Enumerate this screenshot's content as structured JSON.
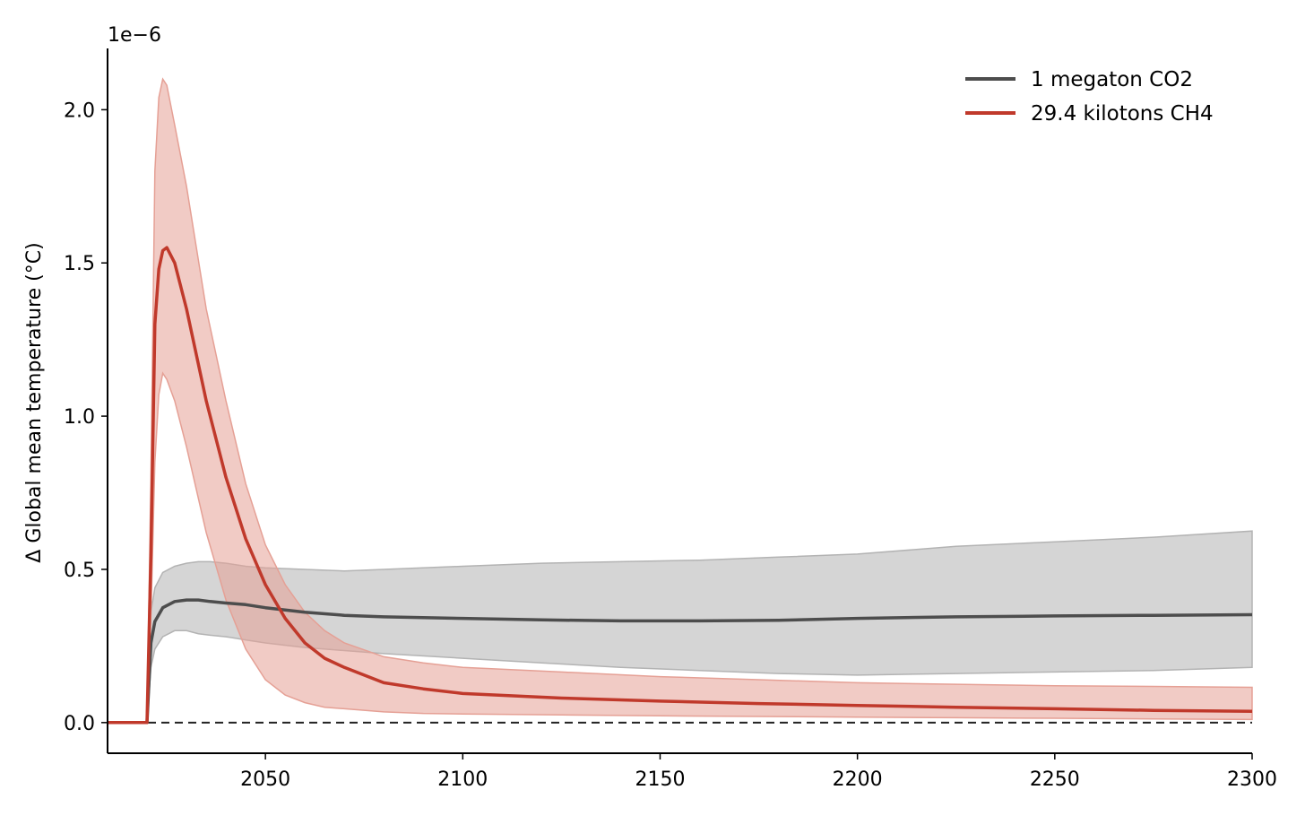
{
  "chart_data": {
    "type": "line",
    "title": "",
    "xlabel": "",
    "ylabel": "Δ Global mean temperature (°C)",
    "y_offset_label": "1e−6",
    "y_scale_multiplier": 1e-06,
    "xlim": [
      2010,
      2300
    ],
    "ylim": [
      -0.1,
      2.2
    ],
    "x_ticks": [
      2050,
      2100,
      2150,
      2200,
      2250,
      2300
    ],
    "y_ticks": [
      0.0,
      0.5,
      1.0,
      1.5,
      2.0
    ],
    "x_tick_labels": [
      "2050",
      "2100",
      "2150",
      "2200",
      "2250",
      "2300"
    ],
    "y_tick_labels": [
      "0.0",
      "0.5",
      "1.0",
      "1.5",
      "2.0"
    ],
    "zero_reference_line": {
      "style": "dashed",
      "value": 0
    },
    "grid": false,
    "legend_position": "top-right",
    "series": [
      {
        "name": "1 megaton CO2",
        "color": "#4d4d4d",
        "band_color": "#b3b3b3",
        "x": [
          2010,
          2020,
          2021,
          2022,
          2024,
          2027,
          2030,
          2033,
          2036,
          2040,
          2045,
          2050,
          2060,
          2070,
          2080,
          2100,
          2120,
          2140,
          2160,
          2180,
          2200,
          2225,
          2250,
          2275,
          2300
        ],
        "y": [
          0,
          0,
          0.26,
          0.33,
          0.375,
          0.395,
          0.4,
          0.4,
          0.395,
          0.39,
          0.385,
          0.375,
          0.36,
          0.35,
          0.345,
          0.34,
          0.335,
          0.332,
          0.332,
          0.334,
          0.34,
          0.345,
          0.348,
          0.35,
          0.352
        ],
        "lower": [
          0,
          0,
          0.18,
          0.24,
          0.28,
          0.3,
          0.3,
          0.29,
          0.285,
          0.28,
          0.27,
          0.26,
          0.245,
          0.235,
          0.225,
          0.21,
          0.195,
          0.18,
          0.17,
          0.16,
          0.155,
          0.16,
          0.165,
          0.17,
          0.18
        ],
        "upper": [
          0,
          0,
          0.36,
          0.44,
          0.49,
          0.51,
          0.52,
          0.525,
          0.525,
          0.52,
          0.51,
          0.505,
          0.5,
          0.495,
          0.5,
          0.51,
          0.52,
          0.525,
          0.53,
          0.54,
          0.55,
          0.575,
          0.59,
          0.605,
          0.625
        ]
      },
      {
        "name": "29.4 kilotons CH4",
        "color": "#c0392b",
        "band_color": "#e5a095",
        "x": [
          2010,
          2020,
          2021,
          2022,
          2023,
          2024,
          2025,
          2027,
          2030,
          2035,
          2040,
          2045,
          2050,
          2055,
          2060,
          2065,
          2070,
          2080,
          2090,
          2100,
          2125,
          2150,
          2175,
          2200,
          2225,
          2250,
          2275,
          2300
        ],
        "y": [
          0,
          0,
          0.55,
          1.3,
          1.48,
          1.54,
          1.55,
          1.5,
          1.35,
          1.05,
          0.8,
          0.6,
          0.45,
          0.34,
          0.26,
          0.21,
          0.18,
          0.13,
          0.11,
          0.095,
          0.08,
          0.07,
          0.062,
          0.056,
          0.05,
          0.045,
          0.04,
          0.037
        ],
        "lower": [
          0,
          0,
          0.35,
          0.85,
          1.07,
          1.14,
          1.12,
          1.05,
          0.9,
          0.62,
          0.4,
          0.24,
          0.14,
          0.09,
          0.065,
          0.05,
          0.045,
          0.035,
          0.03,
          0.028,
          0.025,
          0.022,
          0.02,
          0.018,
          0.016,
          0.014,
          0.012,
          0.01
        ],
        "upper": [
          0,
          0,
          0.8,
          1.8,
          2.04,
          2.1,
          2.08,
          1.95,
          1.75,
          1.35,
          1.05,
          0.78,
          0.58,
          0.45,
          0.36,
          0.3,
          0.26,
          0.215,
          0.195,
          0.18,
          0.165,
          0.15,
          0.14,
          0.13,
          0.125,
          0.12,
          0.118,
          0.115
        ]
      }
    ]
  }
}
